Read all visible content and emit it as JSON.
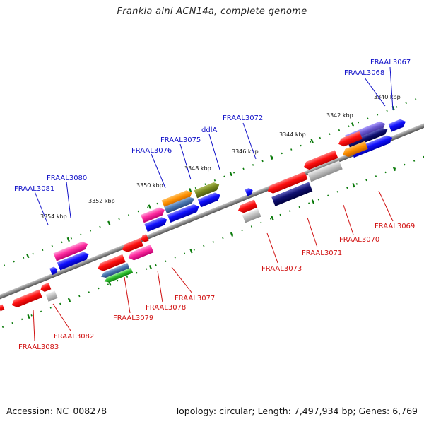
{
  "title": "Frankia alni ACN14a, complete genome",
  "accession": "Accession: NC_008278",
  "topology": "Topology: circular; Length: 7,497,934 bp; Genes: 6,769",
  "colors": {
    "forward_label": "#1010c8",
    "reverse_label": "#d01010",
    "backbone": "#8a8a8a",
    "tick_dot": "#0a7a0a"
  },
  "scale_ticks": [
    "3340 kbp",
    "3342 kbp",
    "3344 kbp",
    "3346 kbp",
    "3348 kbp",
    "3350 kbp",
    "3352 kbp",
    "3354 kbp"
  ],
  "forward_labels": [
    "FRAAL3067",
    "FRAAL3068",
    "FRAAL3072",
    "ddlA",
    "FRAAL3075",
    "FRAAL3076",
    "FRAAL3080",
    "FRAAL3081"
  ],
  "reverse_labels": [
    "FRAAL3069",
    "FRAAL3070",
    "FRAAL3071",
    "FRAAL3073",
    "FRAAL3077",
    "FRAAL3078",
    "FRAAL3079",
    "FRAAL3082",
    "FRAAL3083"
  ]
}
